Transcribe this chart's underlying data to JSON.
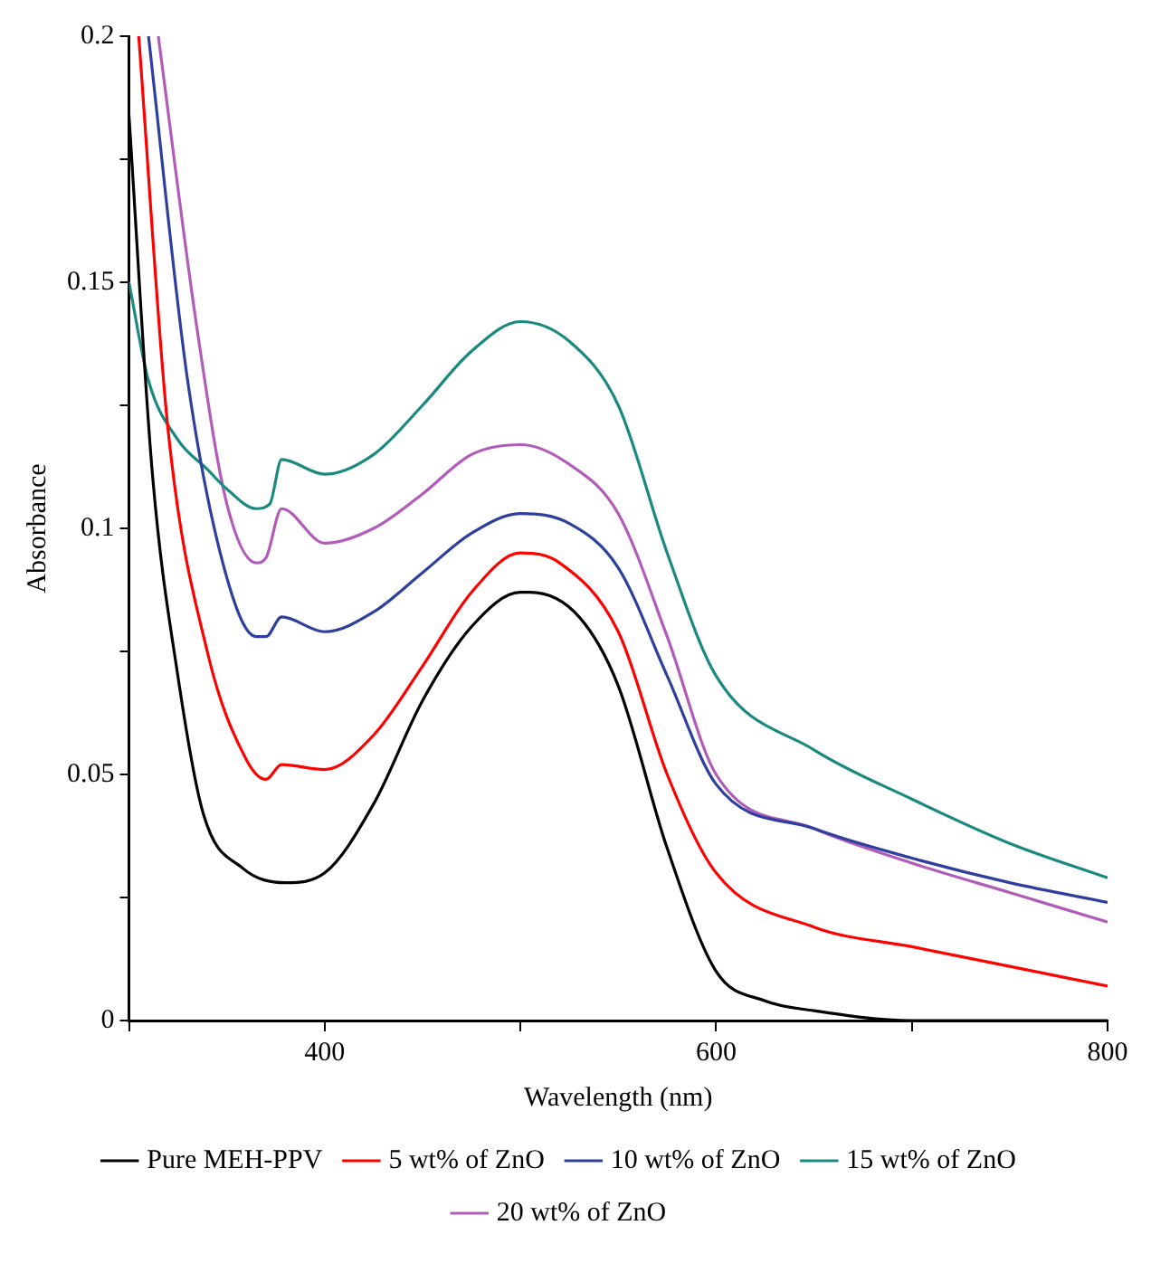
{
  "chart_data": {
    "type": "line",
    "xlabel": "Wavelength (nm)",
    "ylabel": "Absorbance",
    "xlim": [
      300,
      800
    ],
    "ylim": [
      0,
      0.2
    ],
    "xticks": [
      {
        "value": 300,
        "label": null
      },
      400,
      {
        "value": 500,
        "label": null
      },
      600,
      {
        "value": 700,
        "label": null
      },
      800
    ],
    "yticks": [
      0,
      {
        "value": 0.025,
        "label": null
      },
      0.05,
      {
        "value": 0.075,
        "label": null
      },
      0.1,
      {
        "value": 0.125,
        "label": null
      },
      0.15,
      {
        "value": 0.175,
        "label": null
      },
      0.2
    ],
    "grid": false,
    "legend": "bottom",
    "marker": "none",
    "line_style": "solid",
    "series": [
      {
        "name": "Pure MEH-PPV",
        "color": "#000000",
        "x": [
          300,
          312,
          325,
          338,
          358,
          380,
          400,
          425,
          450,
          475,
          500,
          505,
          530,
          550,
          575,
          600,
          625,
          650,
          700,
          800
        ],
        "values": [
          0.184,
          0.111,
          0.07,
          0.042,
          0.031,
          0.028,
          0.03,
          0.044,
          0.065,
          0.08,
          0.087,
          0.087,
          0.082,
          0.068,
          0.035,
          0.01,
          0.004,
          0.002,
          0,
          0
        ]
      },
      {
        "name": "5 wt% of ZnO",
        "color": "#ff0000",
        "x": [
          305,
          320,
          340,
          360,
          370,
          378,
          400,
          425,
          450,
          475,
          500,
          520,
          550,
          575,
          600,
          650,
          700,
          750,
          800
        ],
        "values": [
          0.2,
          0.12,
          0.075,
          0.053,
          0.049,
          0.052,
          0.051,
          0.058,
          0.072,
          0.087,
          0.095,
          0.093,
          0.079,
          0.05,
          0.03,
          0.019,
          0.015,
          0.011,
          0.007
        ]
      },
      {
        "name": "10 wt% of ZnO",
        "color": "#2e3f9e",
        "x": [
          310,
          330,
          350,
          365,
          370,
          378,
          400,
          425,
          450,
          475,
          500,
          525,
          550,
          575,
          600,
          650,
          700,
          750,
          800
        ],
        "values": [
          0.2,
          0.13,
          0.09,
          0.078,
          0.078,
          0.082,
          0.079,
          0.083,
          0.091,
          0.099,
          0.103,
          0.101,
          0.092,
          0.07,
          0.048,
          0.039,
          0.033,
          0.028,
          0.024
        ]
      },
      {
        "name": "15 wt% of ZnO",
        "color": "#1a8a80",
        "x": [
          300,
          310,
          325,
          340,
          350,
          365,
          372,
          378,
          400,
          425,
          450,
          475,
          500,
          525,
          550,
          575,
          600,
          650,
          700,
          750,
          800
        ],
        "values": [
          0.15,
          0.13,
          0.118,
          0.112,
          0.108,
          0.104,
          0.105,
          0.114,
          0.111,
          0.115,
          0.125,
          0.136,
          0.142,
          0.138,
          0.125,
          0.095,
          0.07,
          0.055,
          0.045,
          0.036,
          0.029
        ]
      },
      {
        "name": "20 wt% of ZnO",
        "color": "#b05cb8",
        "x": [
          315,
          335,
          350,
          365,
          370,
          378,
          400,
          425,
          450,
          475,
          500,
          525,
          550,
          575,
          600,
          650,
          700,
          750,
          800
        ],
        "values": [
          0.2,
          0.14,
          0.105,
          0.093,
          0.094,
          0.104,
          0.097,
          0.1,
          0.107,
          0.115,
          0.117,
          0.113,
          0.103,
          0.078,
          0.05,
          0.039,
          0.032,
          0.026,
          0.02
        ]
      }
    ]
  }
}
